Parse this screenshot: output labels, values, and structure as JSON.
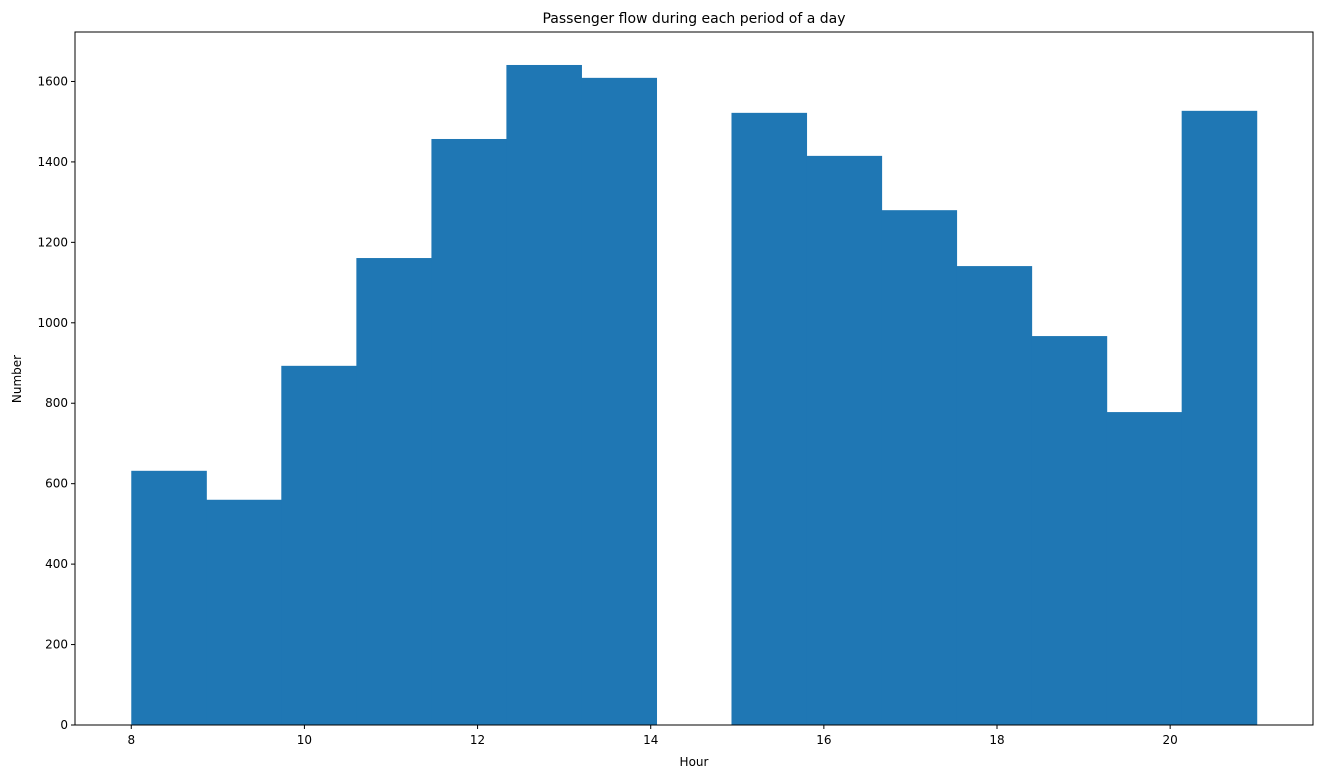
{
  "chart_data": {
    "type": "bar",
    "title": "Passenger flow during each period of a day",
    "xlabel": "Hour",
    "ylabel": "Number",
    "bin_edges": [
      8.0,
      8.867,
      9.733,
      10.6,
      11.467,
      12.333,
      13.2,
      14.067,
      14.933,
      15.8,
      16.667,
      17.533,
      18.4,
      19.267,
      20.133,
      21.0
    ],
    "values": [
      632,
      560,
      893,
      1161,
      1457,
      1641,
      1609,
      0,
      1522,
      1415,
      1280,
      1141,
      967,
      778,
      1527
    ],
    "xlim": [
      7.35,
      21.65
    ],
    "ylim": [
      0,
      1723
    ],
    "xticks": [
      8,
      10,
      12,
      14,
      16,
      18,
      20
    ],
    "yticks": [
      0,
      200,
      400,
      600,
      800,
      1000,
      1200,
      1400,
      1600
    ],
    "bar_color": "#1f77b4",
    "grid": false,
    "legend": false
  }
}
